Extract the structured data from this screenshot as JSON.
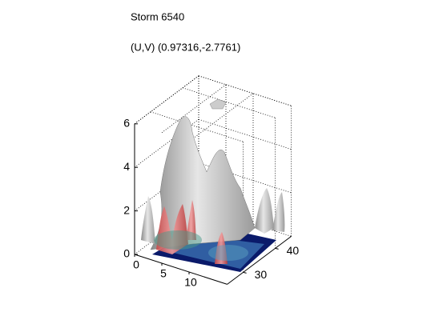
{
  "chart_data": {
    "type": "surface3d",
    "title": "Storm 6540",
    "subtitle": "(U,V) (0.97316,-2.7761)",
    "xlim": [
      0,
      17
    ],
    "ylim": [
      25,
      45
    ],
    "zlim": [
      0,
      6
    ],
    "xticks": [
      0,
      5,
      10
    ],
    "yticks": [
      30,
      40
    ],
    "zticks": [
      0,
      2,
      4,
      6
    ],
    "grid": true
  }
}
